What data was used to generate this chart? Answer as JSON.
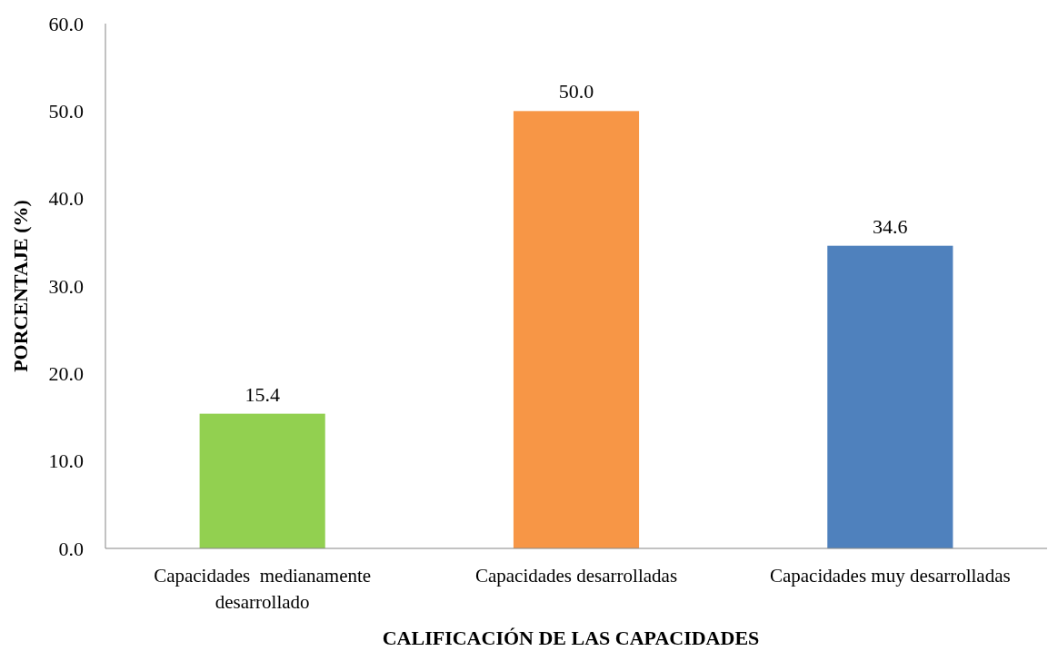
{
  "chart_data": {
    "type": "bar",
    "xlabel": "CALIFICACIÓN DE LAS CAPACIDADES",
    "ylabel": "PORCENTAJE (%)",
    "categories": [
      "Capacidades  medianamente desarrollado",
      "Capacidades desarrolladas",
      "Capacidades muy desarrolladas"
    ],
    "values": [
      15.4,
      50.0,
      34.6
    ],
    "colors": [
      "#92d050",
      "#f79646",
      "#4f81bd"
    ],
    "value_labels": [
      "15.4",
      "50.0",
      "34.6"
    ],
    "ylim": [
      0,
      60
    ],
    "yticks": [
      {
        "value": 0,
        "label": "0.0"
      },
      {
        "value": 10,
        "label": "10.0"
      },
      {
        "value": 20,
        "label": "20.0"
      },
      {
        "value": 30,
        "label": "30.0"
      },
      {
        "value": 40,
        "label": "40.0"
      },
      {
        "value": 50,
        "label": "50.0"
      },
      {
        "value": 60,
        "label": "60.0"
      }
    ],
    "grid": false
  }
}
